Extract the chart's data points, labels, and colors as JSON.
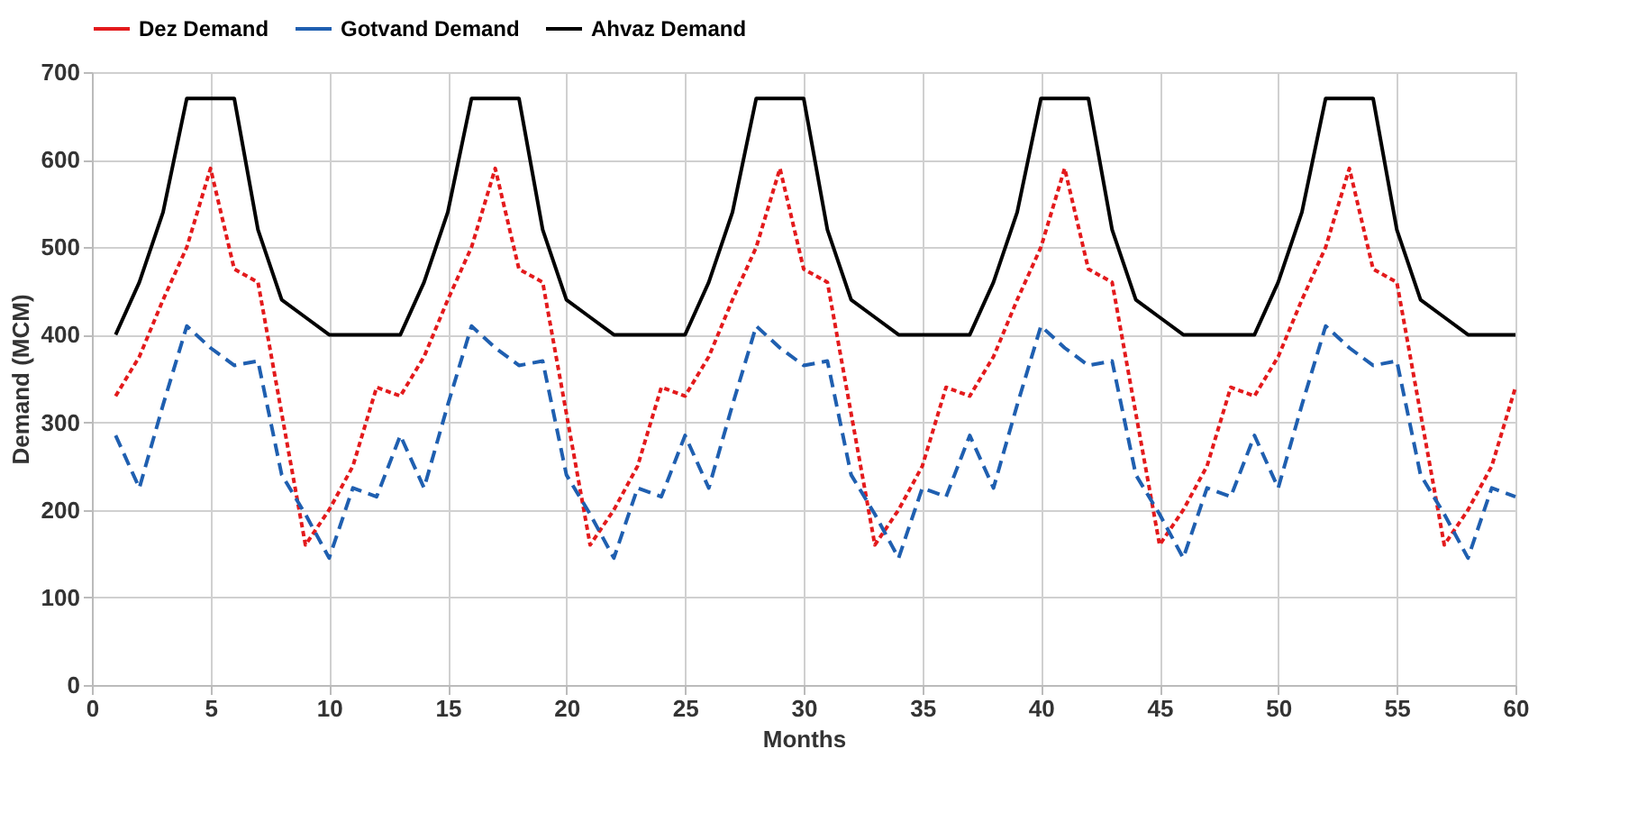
{
  "chart_data": {
    "type": "line",
    "xlabel": "Months",
    "ylabel": "Demand (MCM)",
    "x": [
      1,
      2,
      3,
      4,
      5,
      6,
      7,
      8,
      9,
      10,
      11,
      12,
      13,
      14,
      15,
      16,
      17,
      18,
      19,
      20,
      21,
      22,
      23,
      24,
      25,
      26,
      27,
      28,
      29,
      30,
      31,
      32,
      33,
      34,
      35,
      36,
      37,
      38,
      39,
      40,
      41,
      42,
      43,
      44,
      45,
      46,
      47,
      48,
      49,
      50,
      51,
      52,
      53,
      54,
      55,
      56,
      57,
      58,
      59,
      60
    ],
    "series": [
      {
        "name": "Dez Demand",
        "color": "#e31a1c",
        "line_style": "dotted",
        "values": [
          330,
          375,
          440,
          500,
          590,
          475,
          460,
          310,
          160,
          200,
          250,
          340,
          330,
          375,
          440,
          500,
          590,
          475,
          460,
          310,
          160,
          200,
          250,
          340,
          330,
          375,
          440,
          500,
          590,
          475,
          460,
          310,
          160,
          200,
          250,
          340,
          330,
          375,
          440,
          500,
          590,
          475,
          460,
          310,
          160,
          200,
          250,
          340,
          330,
          375,
          440,
          500,
          590,
          475,
          460,
          310,
          160,
          200,
          250,
          340
        ]
      },
      {
        "name": "Gotvand Demand",
        "color": "#1f5fb0",
        "line_style": "dashed",
        "values": [
          285,
          225,
          320,
          410,
          385,
          365,
          370,
          240,
          195,
          145,
          225,
          215,
          285,
          225,
          320,
          410,
          385,
          365,
          370,
          240,
          195,
          145,
          225,
          215,
          285,
          225,
          320,
          410,
          385,
          365,
          370,
          240,
          195,
          145,
          225,
          215,
          285,
          225,
          320,
          410,
          385,
          365,
          370,
          240,
          195,
          145,
          225,
          215,
          285,
          225,
          320,
          410,
          385,
          365,
          370,
          240,
          195,
          145,
          225,
          215
        ]
      },
      {
        "name": "Ahvaz Demand",
        "color": "#000000",
        "line_style": "solid",
        "values": [
          400,
          460,
          540,
          670,
          670,
          670,
          520,
          440,
          420,
          400,
          400,
          400,
          400,
          460,
          540,
          670,
          670,
          670,
          520,
          440,
          420,
          400,
          400,
          400,
          400,
          460,
          540,
          670,
          670,
          670,
          520,
          440,
          420,
          400,
          400,
          400,
          400,
          460,
          540,
          670,
          670,
          670,
          520,
          440,
          420,
          400,
          400,
          400,
          400,
          460,
          540,
          670,
          670,
          670,
          520,
          440,
          420,
          400,
          400,
          400
        ]
      }
    ],
    "xlim": [
      0,
      60
    ],
    "xticks": [
      0,
      5,
      10,
      15,
      20,
      25,
      30,
      35,
      40,
      45,
      50,
      55,
      60
    ],
    "ylim": [
      0,
      700
    ],
    "yticks": [
      0,
      100,
      200,
      300,
      400,
      500,
      600,
      700
    ],
    "grid": true,
    "legend": "top",
    "marker": "none"
  }
}
